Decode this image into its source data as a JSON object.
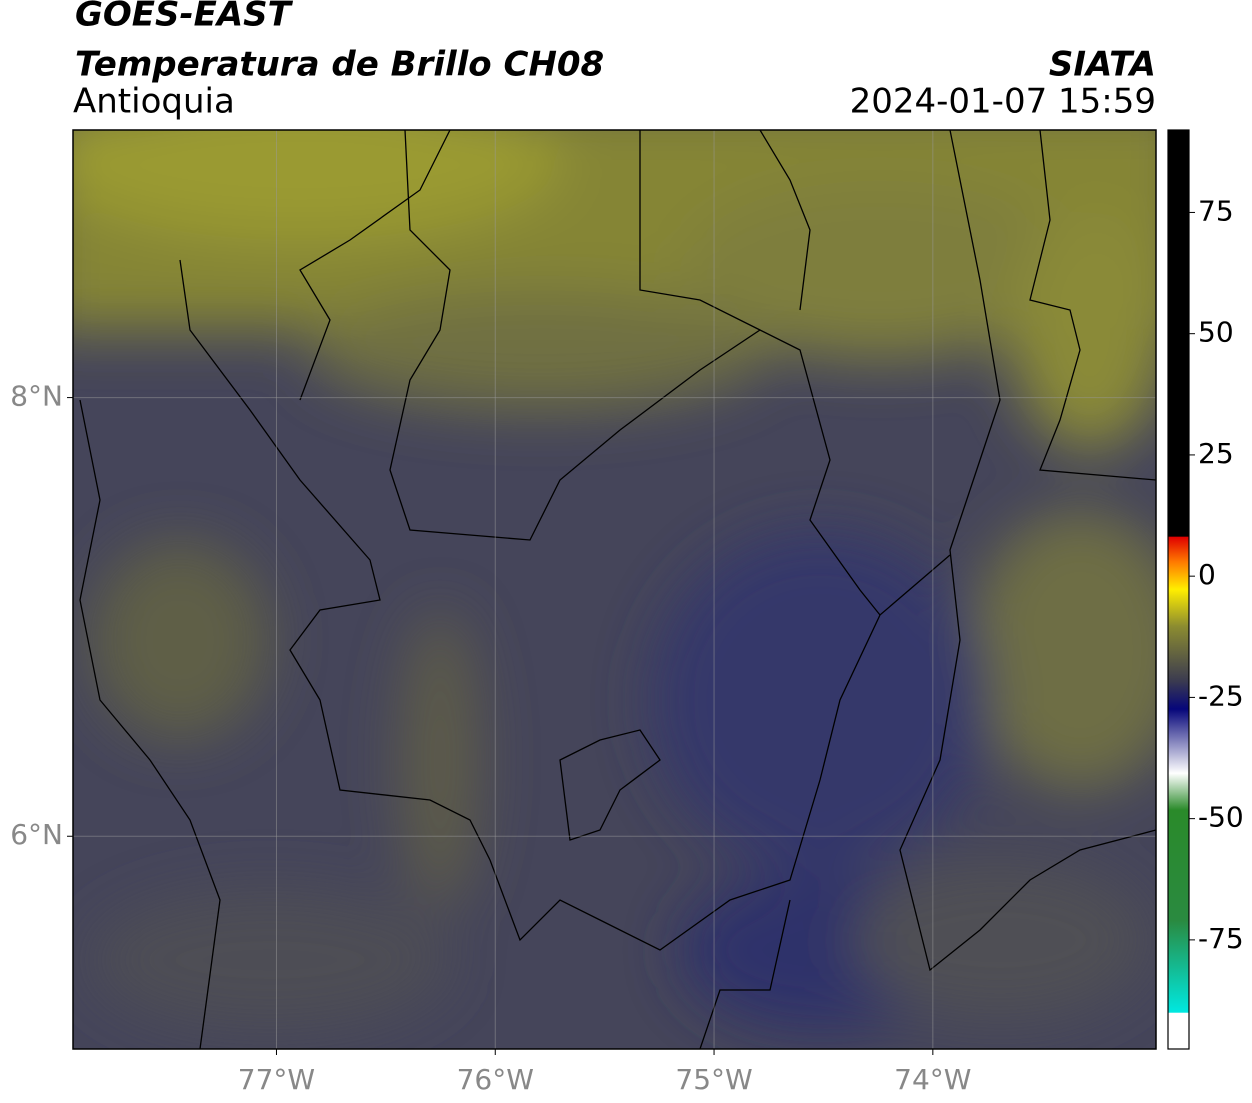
{
  "map": {
    "title": "GOES-EAST",
    "subtitle": "Temperatura de Brillo CH08",
    "region": "Antioquia",
    "source": "SIATA",
    "timestamp": "2024-01-07 15:59",
    "xlim": [
      -77.93,
      -72.98
    ],
    "ylim": [
      5.03,
      9.22
    ],
    "xticks": [
      {
        "value": -77,
        "label": "77°W"
      },
      {
        "value": -76,
        "label": "76°W"
      },
      {
        "value": -75,
        "label": "75°W"
      },
      {
        "value": -74,
        "label": "74°W"
      }
    ],
    "yticks": [
      {
        "value": 6,
        "label": "6°N"
      },
      {
        "value": 8,
        "label": "8°N"
      }
    ],
    "grid": true
  },
  "colorbar": {
    "lim": [
      -97.5,
      92
    ],
    "ticks": [
      75,
      50,
      25,
      0,
      -25,
      -50,
      -75
    ]
  }
}
